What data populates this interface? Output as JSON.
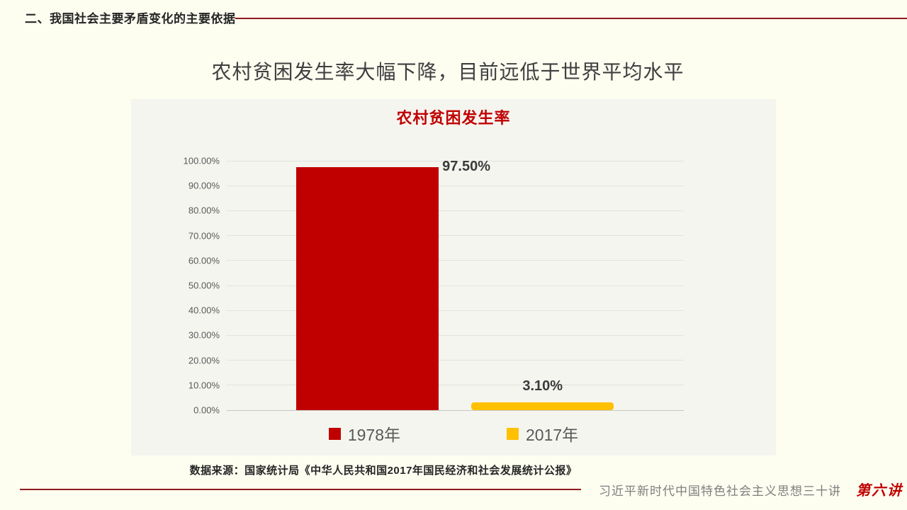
{
  "slide": {
    "header": "二、我国社会主要矛盾变化的主要依据",
    "title": "农村贫困发生率大幅下降，目前远低于世界平均水平",
    "source": "数据来源：国家统计局《中华人民共和国2017年国民经济和社会发展统计公报》",
    "footer": {
      "series_title": "习近平新时代中国特色社会主义思想三十讲",
      "lecture_badge": "第六讲"
    }
  },
  "chart_data": {
    "type": "bar",
    "title": "农村贫困发生率",
    "series": [
      {
        "name": "1978年",
        "value": 97.5,
        "label": "97.50%",
        "color": "#C00000"
      },
      {
        "name": "2017年",
        "value": 3.1,
        "label": "3.10%",
        "color": "#FFC000"
      }
    ],
    "ylim": [
      0,
      100
    ],
    "yticks": [
      "0.00%",
      "10.00%",
      "20.00%",
      "30.00%",
      "40.00%",
      "50.00%",
      "60.00%",
      "70.00%",
      "80.00%",
      "90.00%",
      "100.00%"
    ],
    "grid": true,
    "legend_position": "bottom"
  },
  "colors": {
    "accent_red": "#C00000",
    "bar_yellow": "#FFC000",
    "rule_red": "#8E1C1C",
    "slide_background": "#FDFDF0",
    "panel_background": "#F5F5F0",
    "text_dark": "#262626",
    "text_gray": "#595959"
  }
}
